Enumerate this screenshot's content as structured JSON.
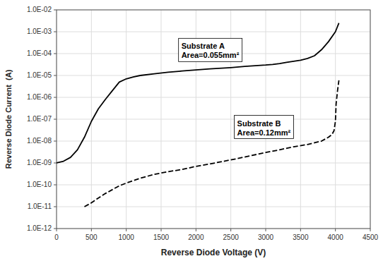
{
  "chart_data": {
    "type": "line",
    "log": "y",
    "grid": true,
    "xlabel": "Reverse Diode Voltage (V)",
    "ylabel": "Reverse Diode Current  (A)",
    "xlim": [
      0,
      4500
    ],
    "ylim": [
      1e-12,
      0.01
    ],
    "xticks": [
      0,
      500,
      1000,
      1500,
      2000,
      2500,
      3000,
      3500,
      4000,
      4500
    ],
    "yticks": [
      {
        "value": 1e-12,
        "label": "1.0E-12"
      },
      {
        "value": 1e-11,
        "label": "1.0E-11"
      },
      {
        "value": 1e-10,
        "label": "1.0E-10"
      },
      {
        "value": 1e-09,
        "label": "1.0E-09"
      },
      {
        "value": 1e-08,
        "label": "1.0E-08"
      },
      {
        "value": 1e-07,
        "label": "1.0E-07"
      },
      {
        "value": 1e-06,
        "label": "1.0E-06"
      },
      {
        "value": 1e-05,
        "label": "1.0E-05"
      },
      {
        "value": 0.0001,
        "label": "1.0E-04"
      },
      {
        "value": 0.001,
        "label": "1.0E-03"
      },
      {
        "value": 0.01,
        "label": "1.0E-02"
      }
    ],
    "series": [
      {
        "color": "#000000",
        "line_style": "solid",
        "x": [
          0,
          100,
          200,
          300,
          400,
          500,
          600,
          700,
          800,
          900,
          1000,
          1100,
          1200,
          1400,
          1600,
          1800,
          2000,
          2200,
          2500,
          2700,
          3000,
          3100,
          3200,
          3300,
          3500,
          3600,
          3700,
          3800,
          3900,
          4000,
          4050
        ],
        "values": [
          1e-09,
          1.2e-09,
          1.8e-09,
          4e-09,
          1.5e-08,
          8e-08,
          3e-07,
          8e-07,
          2e-06,
          5e-06,
          7e-06,
          8.5e-06,
          1e-05,
          1.2e-05,
          1.4e-05,
          1.6e-05,
          1.8e-05,
          2e-05,
          2.3e-05,
          2.6e-05,
          3e-05,
          3.2e-05,
          3.5e-05,
          4e-05,
          5e-05,
          6e-05,
          8e-05,
          0.00015,
          0.00035,
          0.001,
          0.0025
        ]
      },
      {
        "color": "#000000",
        "line_style": "dashed",
        "x": [
          400,
          500,
          600,
          700,
          800,
          900,
          1000,
          1200,
          1400,
          1600,
          1800,
          2000,
          2200,
          2400,
          2600,
          2800,
          3000,
          3200,
          3400,
          3600,
          3800,
          3900,
          3950,
          3980,
          4000,
          4010,
          4030,
          4050
        ],
        "values": [
          1e-11,
          1.5e-11,
          2.5e-11,
          4e-11,
          6e-11,
          9e-11,
          1.2e-10,
          2e-10,
          3e-10,
          4e-10,
          5e-10,
          7e-10,
          9e-10,
          1.2e-09,
          1.6e-09,
          2.2e-09,
          3e-09,
          4e-09,
          5.5e-09,
          7e-09,
          1e-08,
          1.5e-08,
          2e-08,
          3e-08,
          8e-08,
          5e-07,
          2e-06,
          6e-06
        ]
      }
    ],
    "annotations": [
      {
        "text": "Substrate A\nArea=0.055mm²",
        "x": 1750,
        "y": 0.0005
      },
      {
        "text": "Substrate B\nArea=0.12mm²",
        "x": 2550,
        "y": 1.5e-07
      }
    ]
  }
}
